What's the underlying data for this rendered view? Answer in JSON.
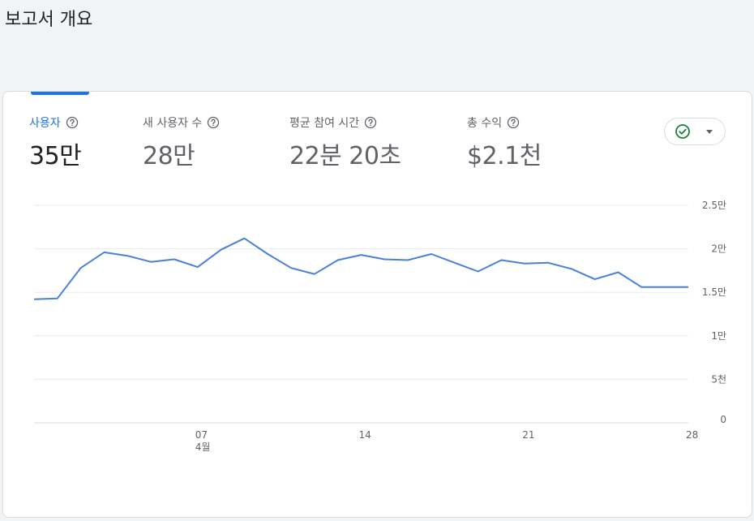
{
  "page_title": "보고서 개요",
  "metrics": [
    {
      "label": "사용자",
      "value": "35만",
      "active": true
    },
    {
      "label": "새 사용자 수",
      "value": "28만",
      "active": false
    },
    {
      "label": "평균 참여 시간",
      "value": "22분 20초",
      "active": false
    },
    {
      "label": "총 수익",
      "value": "$2.1천",
      "active": false
    }
  ],
  "compare_dropdown": {
    "icon": "check-circle-icon",
    "caret_icon": "caret-down-icon"
  },
  "colors": {
    "accent": "#1a73e8",
    "line": "#4a7fdc",
    "check": "#188038"
  },
  "chart_data": {
    "type": "line",
    "x": [
      "2024-03-31",
      "2024-04-01",
      "2024-04-02",
      "2024-04-03",
      "2024-04-04",
      "2024-04-05",
      "2024-04-06",
      "2024-04-07",
      "2024-04-08",
      "2024-04-09",
      "2024-04-10",
      "2024-04-11",
      "2024-04-12",
      "2024-04-13",
      "2024-04-14",
      "2024-04-15",
      "2024-04-16",
      "2024-04-17",
      "2024-04-18",
      "2024-04-19",
      "2024-04-20",
      "2024-04-21",
      "2024-04-22",
      "2024-04-23",
      "2024-04-24",
      "2024-04-25",
      "2024-04-26",
      "2024-04-27",
      "2024-04-28"
    ],
    "series": [
      {
        "values": [
          14200,
          14300,
          17800,
          19600,
          19200,
          18500,
          18800,
          17900,
          19900,
          21200,
          19400,
          17800,
          17100,
          18700,
          19300,
          18800,
          18700,
          19400,
          18400,
          17400,
          18700,
          18300,
          18400,
          17700,
          16500,
          17300,
          15600,
          15600,
          15600
        ]
      }
    ],
    "xticks": [
      {
        "label": "07",
        "sublabel": "4월",
        "index": 7
      },
      {
        "label": "14",
        "sublabel": "",
        "index": 14
      },
      {
        "label": "21",
        "sublabel": "",
        "index": 21
      },
      {
        "label": "28",
        "sublabel": "",
        "index": 28
      }
    ],
    "yticks": [
      {
        "value": 0,
        "label": "0"
      },
      {
        "value": 5000,
        "label": "5천"
      },
      {
        "value": 10000,
        "label": "1만"
      },
      {
        "value": 15000,
        "label": "1.5만"
      },
      {
        "value": 20000,
        "label": "2만"
      },
      {
        "value": 25000,
        "label": "2.5만"
      }
    ],
    "ylim": [
      0,
      25000
    ],
    "grid": true,
    "title": "",
    "xlabel": "",
    "ylabel": ""
  }
}
